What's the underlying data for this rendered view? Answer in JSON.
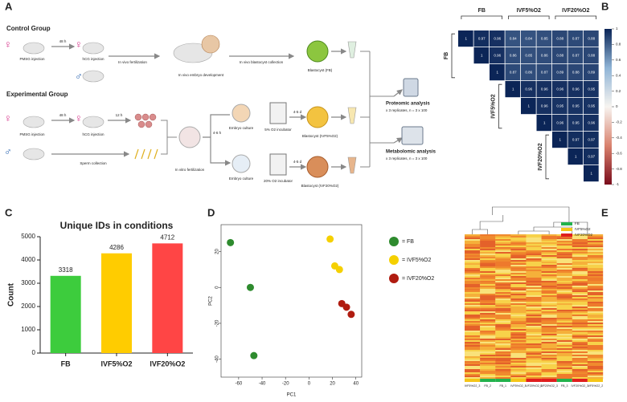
{
  "panels": [
    "A",
    "B",
    "C",
    "D",
    "E"
  ],
  "diagram": {
    "control_group": "Control Group",
    "control": {
      "pmsg": "PMSG injection",
      "h48": "48 h",
      "hcg": "hCG injection",
      "fert": "In vivo fertilization",
      "dev": "In vivo embryo development",
      "collect": "In vivo blastocyst collection",
      "blast": "Blastocyst (FB)"
    },
    "experimental_group": "Experimental Group",
    "experimental": {
      "pmsg": "PMSG injection",
      "h48": "48 h",
      "hcg": "hCG injection",
      "h12": "12 h",
      "sperm": "Sperm collection",
      "ivf": "In vitro fertilization",
      "h46": "4-6 h",
      "culture1": "Embryo culture",
      "culture2": "Embryo culture",
      "inc5": "5% O2 incubator",
      "inc20": "20% O2 incubator",
      "d45a": "4-5 d",
      "d45b": "4-5 d",
      "blast5": "Blastocyst (IVF5%O2)",
      "blast20": "Blastocyst (IVF20%O2)"
    },
    "proteomic": "Proteomic analysis",
    "proteomic_note": "x 3 replicates, n = 3 x 100",
    "metabolomic": "Metabolomic analysis",
    "metabolomic_note": "x 3 replicates, n = 3 x 100"
  },
  "chart_data": [
    {
      "type": "correlation",
      "groups": [
        "FB",
        "IVF5%O2",
        "IVF20%O2"
      ],
      "matrix": [
        [
          1,
          0.97,
          0.96,
          0.84,
          0.84,
          0.85,
          0.88,
          0.87,
          0.88
        ],
        [
          null,
          1,
          0.96,
          0.86,
          0.85,
          0.86,
          0.88,
          0.87,
          0.88
        ],
        [
          null,
          null,
          1,
          0.87,
          0.86,
          0.87,
          0.89,
          0.88,
          0.89
        ],
        [
          null,
          null,
          null,
          1,
          0.96,
          0.96,
          0.96,
          0.96,
          0.95
        ],
        [
          null,
          null,
          null,
          null,
          1,
          0.96,
          0.95,
          0.95,
          0.95
        ],
        [
          null,
          null,
          null,
          null,
          null,
          1,
          0.96,
          0.95,
          0.96
        ],
        [
          null,
          null,
          null,
          null,
          null,
          null,
          1,
          0.97,
          0.97
        ],
        [
          null,
          null,
          null,
          null,
          null,
          null,
          null,
          1,
          0.97
        ],
        [
          null,
          null,
          null,
          null,
          null,
          null,
          null,
          null,
          1
        ]
      ],
      "clim": [
        -1,
        1
      ],
      "colorbar_ticks": [
        1,
        0.8,
        0.6,
        0.4,
        0.2,
        0,
        -0.2,
        -0.4,
        -0.6,
        -0.8,
        -1
      ],
      "colors": [
        "#7a0c1c",
        "#d9826e",
        "#f7f4f0",
        "#8fb4d6",
        "#0b2557"
      ]
    },
    {
      "type": "bar",
      "title": "Unique IDs in conditions",
      "y_label": "Count",
      "categories": [
        "FB",
        "IVF5%O2",
        "IVF20%O2"
      ],
      "values": [
        3318,
        4286,
        4712
      ],
      "colors": [
        "#3dcc3d",
        "#ffcc00",
        "#ff4545"
      ],
      "ylim": [
        0,
        5000
      ],
      "yticks": [
        0,
        1000,
        2000,
        3000,
        4000,
        5000
      ]
    },
    {
      "type": "scatter",
      "x_label": "PC1",
      "y_label": "PC2",
      "xlim": [
        -75,
        45
      ],
      "ylim": [
        -50,
        35
      ],
      "xticks": [
        -60,
        -40,
        -20,
        0,
        20,
        40
      ],
      "yticks": [
        -40,
        -20,
        0,
        20
      ],
      "series": [
        {
          "name": "= FB",
          "color": "#2e8b2e",
          "x": [
            -67,
            -50,
            -47
          ],
          "values": [
            25,
            0,
            -38
          ]
        },
        {
          "name": "= IVF5%O2",
          "color": "#f5d000",
          "x": [
            18,
            22,
            26
          ],
          "values": [
            27,
            12,
            10
          ]
        },
        {
          "name": "= IVF20%O2",
          "color": "#b01c10",
          "x": [
            28,
            32,
            36
          ],
          "values": [
            -9,
            -11,
            -15
          ]
        }
      ]
    },
    {
      "type": "clustered_heatmap",
      "legend": [
        {
          "name": "FB",
          "color": "#22b24c"
        },
        {
          "name": "IVF5%O2",
          "color": "#f5c518"
        },
        {
          "name": "IVF20%O2",
          "color": "#e01e1e"
        }
      ],
      "columns": [
        "IVF5%O2_3",
        "FB_2",
        "FB_1",
        "IVF5%O2_1",
        "IVF20%O2_2",
        "IVF20%O2_3",
        "FB_3",
        "IVF20%O2_1",
        "IVF5%O2_2"
      ],
      "column_groups": [
        "IVF5%O2",
        "FB",
        "FB",
        "IVF5%O2",
        "IVF20%O2",
        "IVF20%O2",
        "FB",
        "IVF20%O2",
        "IVF5%O2"
      ]
    }
  ]
}
